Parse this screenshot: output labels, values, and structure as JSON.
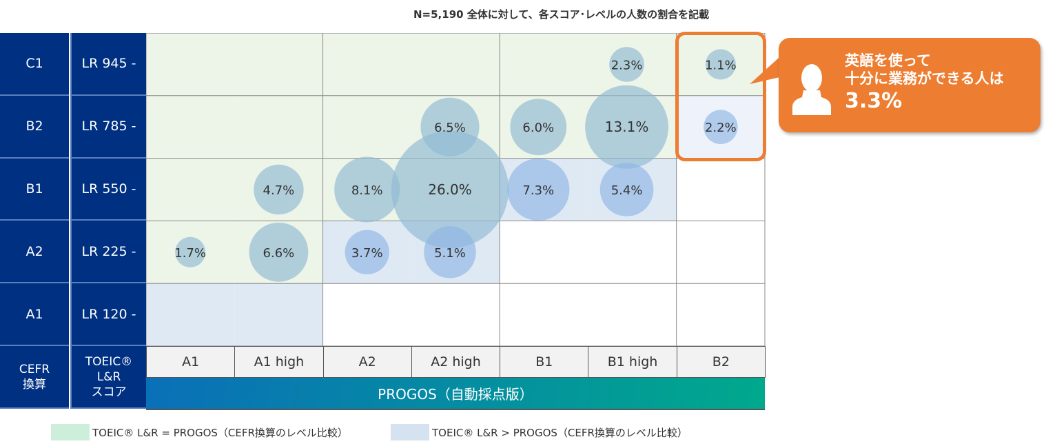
{
  "note": "N=5,190  全体に対して、各スコア･レベルの人数の割合を記載",
  "chart_data": {
    "type": "scatter",
    "subtype": "bubble",
    "x_categories": [
      "A1",
      "A1 high",
      "A2",
      "A2 high",
      "B1",
      "B1 high",
      "B2"
    ],
    "x_title": "PROGOS（自動採点版）",
    "y_categories": [
      {
        "cefr": "C1",
        "score": "LR 945 -"
      },
      {
        "cefr": "B2",
        "score": "LR 785 -"
      },
      {
        "cefr": "B1",
        "score": "LR 550 -"
      },
      {
        "cefr": "A2",
        "score": "LR 225 -"
      },
      {
        "cefr": "A1",
        "score": "LR 120 -"
      }
    ],
    "y_header_cefr": "CEFR\n換算",
    "y_header_score": "TOEIC®\nL&R\nスコア",
    "points": [
      {
        "y": "C1",
        "x": "B1 high",
        "value": 2.3,
        "label": "2.3%"
      },
      {
        "y": "C1",
        "x": "B2",
        "value": 1.1,
        "label": "1.1%"
      },
      {
        "y": "B2",
        "x": "A2 high",
        "value": 6.5,
        "label": "6.5%"
      },
      {
        "y": "B2",
        "x": "B1",
        "value": 6.0,
        "label": "6.0%"
      },
      {
        "y": "B2",
        "x": "B1 high",
        "value": 13.1,
        "label": "13.1%"
      },
      {
        "y": "B2",
        "x": "B2",
        "value": 2.2,
        "label": "2.2%"
      },
      {
        "y": "B1",
        "x": "A1 high",
        "value": 4.7,
        "label": "4.7%"
      },
      {
        "y": "B1",
        "x": "A2",
        "value": 8.1,
        "label": "8.1%"
      },
      {
        "y": "B1",
        "x": "A2 high",
        "value": 26.0,
        "label": "26.0%"
      },
      {
        "y": "B1",
        "x": "B1",
        "value": 7.3,
        "label": "7.3%"
      },
      {
        "y": "B1",
        "x": "B1 high",
        "value": 5.4,
        "label": "5.4%"
      },
      {
        "y": "A2",
        "x": "A1",
        "value": 1.7,
        "label": "1.7%"
      },
      {
        "y": "A2",
        "x": "A1 high",
        "value": 6.6,
        "label": "6.6%"
      },
      {
        "y": "A2",
        "x": "A2",
        "value": 3.7,
        "label": "3.7%"
      },
      {
        "y": "A2",
        "x": "A2 high",
        "value": 5.1,
        "label": "5.1%"
      }
    ],
    "cell_shading": [
      [
        "eq",
        "eq",
        "eq",
        "eq",
        "eq",
        "eq",
        "eq"
      ],
      [
        "eq",
        "eq",
        "eq",
        "eq",
        "eq",
        "eq",
        "gt"
      ],
      [
        "eq",
        "eq",
        "eq",
        "eq",
        "gt",
        "gt",
        "none"
      ],
      [
        "eq",
        "eq",
        "gt",
        "gt",
        "none",
        "none",
        "none"
      ],
      [
        "gt",
        "gt",
        "none",
        "none",
        "none",
        "none",
        "none"
      ]
    ],
    "legend": [
      {
        "key": "eq",
        "label": "TOEIC® L&R = PROGOS（CEFR換算のレベル比較）",
        "color": "#cdeedb"
      },
      {
        "key": "gt",
        "label": "TOEIC® L&R > PROGOS（CEFR換算のレベル比較）",
        "color": "#d5e2ef"
      }
    ]
  },
  "colors": {
    "header": "#003082",
    "eq_cell": "#edf4e8",
    "gt_cell": "#dfe9f4",
    "gt_cell_light": "#eef3fb",
    "bubble": "#8fbad3",
    "bubble_blue": "#8fb5e3",
    "accent": "#ed7d31"
  },
  "callout": {
    "line1": "英語を使って",
    "line2": "十分に業務ができる人は",
    "value": "3.3%",
    "icon": "person-icon"
  }
}
